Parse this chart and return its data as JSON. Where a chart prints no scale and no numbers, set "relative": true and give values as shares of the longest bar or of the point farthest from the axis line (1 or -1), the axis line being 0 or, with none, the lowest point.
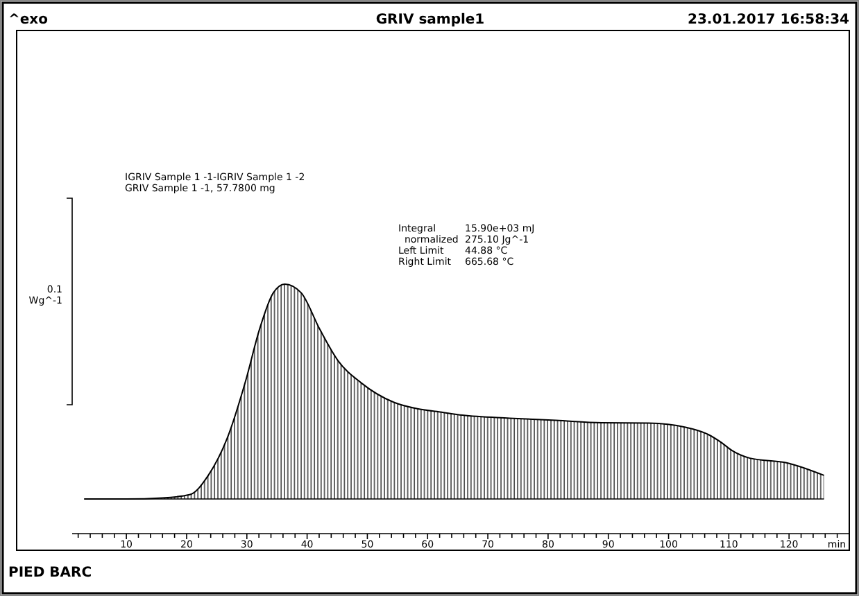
{
  "chart_data": {
    "type": "area",
    "title": "GRIV sample1",
    "subtitle": "23.01.2017 16:58:34",
    "xlabel": "min",
    "relative": true,
    "tick_labels": "x",
    "annotations": [
      "^exo",
      "IGRIV Sample 1 -1-IGRIV Sample 1 -2",
      "GRIV Sample 1 -1, 57.7800 mg",
      "Integral",
      "15.90e+03 mJ",
      "normalized",
      "275.10 Jg^-1",
      "Left Limit",
      "44.88 °C",
      "Right Limit",
      "665.68 °C",
      "0.1\nWg^-1",
      "PIED BARC"
    ],
    "xlim": [
      1,
      130
    ],
    "xticks": [
      10,
      20,
      30,
      40,
      50,
      60,
      70,
      80,
      90,
      100,
      110,
      120
    ],
    "series": [
      {
        "color": "#000000",
        "x": [
          3,
          10,
          16,
          20.5,
          23.6,
          26.7,
          29.8,
          32.1,
          34.4,
          36.3,
          39,
          42.1,
          45.1,
          49,
          54.4,
          58.3,
          62.1,
          65.8,
          73.6,
          81.3,
          88.9,
          96.7,
          102.8,
          106.6,
          108.9,
          110.5,
          113.5,
          119.7,
          125.8
        ],
        "values": [
          0,
          0,
          0.005,
          0.02,
          0.11,
          0.28,
          0.55,
          0.79,
          0.96,
          1,
          0.96,
          0.79,
          0.645,
          0.54,
          0.45,
          0.42,
          0.405,
          0.39,
          0.376,
          0.366,
          0.355,
          0.353,
          0.334,
          0.3,
          0.26,
          0.226,
          0.19,
          0.168,
          0.11
        ]
      }
    ]
  }
}
